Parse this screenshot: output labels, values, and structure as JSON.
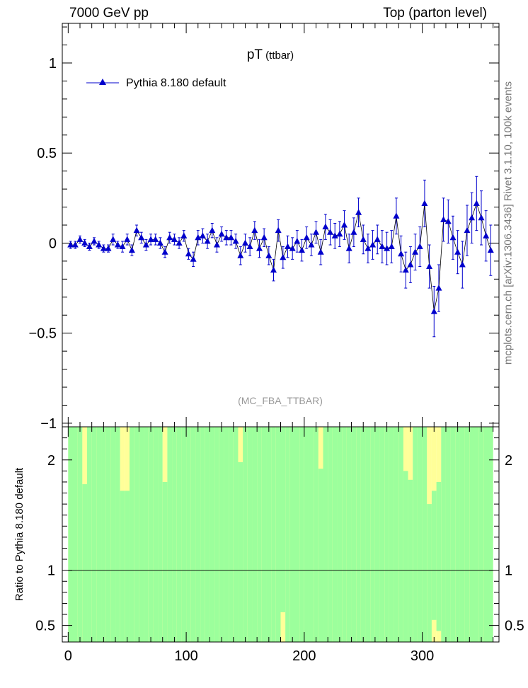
{
  "header": {
    "left": "7000 GeV pp",
    "right": "Top (parton level)",
    "side_note": "mcplots.cern.ch [arXiv:1306.3436]        Rivet 3.1.10,  100k events"
  },
  "chart_data": [
    {
      "type": "line",
      "title": "pT",
      "title_sub": "(ttbar)",
      "watermark": "(MC_FBA_TTBAR)",
      "xlim": [
        -5,
        365
      ],
      "ylim": [
        -1.02,
        1.22
      ],
      "yticks": [
        -1,
        -0.5,
        0,
        0.5,
        1
      ],
      "ytick_labels": [
        "−1",
        "−0.5",
        "0",
        "0.5",
        "1"
      ],
      "legend": {
        "placement": "top-left",
        "entries": [
          "Pythia 8.180 default"
        ]
      },
      "colors": {
        "series": "#0000cc",
        "line": "#000000"
      },
      "series": [
        {
          "name": "Pythia 8.180 default",
          "x": [
            2,
            6,
            10,
            14,
            18,
            22,
            26,
            30,
            34,
            38,
            42,
            46,
            50,
            54,
            58,
            62,
            66,
            70,
            74,
            78,
            82,
            86,
            90,
            94,
            98,
            102,
            106,
            110,
            114,
            118,
            122,
            126,
            130,
            134,
            138,
            142,
            146,
            150,
            154,
            158,
            162,
            166,
            170,
            174,
            178,
            182,
            186,
            190,
            194,
            198,
            202,
            206,
            210,
            214,
            218,
            222,
            226,
            230,
            234,
            238,
            242,
            246,
            250,
            254,
            258,
            262,
            266,
            270,
            274,
            278,
            282,
            286,
            290,
            294,
            298,
            302,
            306,
            310,
            314,
            318,
            322,
            326,
            330,
            334,
            338,
            342,
            346,
            350,
            354,
            358
          ],
          "y": [
            -0.01,
            -0.01,
            0.02,
            0.0,
            -0.02,
            0.01,
            -0.01,
            -0.03,
            -0.03,
            0.02,
            -0.01,
            -0.02,
            0.02,
            -0.04,
            0.07,
            0.03,
            -0.01,
            0.02,
            0.02,
            0.0,
            -0.05,
            0.03,
            0.02,
            0.0,
            0.04,
            -0.06,
            -0.09,
            0.03,
            0.04,
            0.01,
            0.07,
            -0.01,
            0.05,
            0.03,
            0.03,
            0.01,
            -0.07,
            0.0,
            -0.02,
            0.07,
            -0.03,
            0.03,
            -0.07,
            -0.15,
            0.07,
            -0.08,
            -0.02,
            -0.03,
            0.01,
            -0.04,
            0.03,
            -0.01,
            0.06,
            -0.05,
            0.09,
            0.06,
            0.04,
            0.05,
            0.1,
            -0.03,
            0.06,
            0.17,
            0.02,
            -0.03,
            -0.01,
            0.02,
            -0.02,
            -0.03,
            -0.02,
            0.15,
            -0.06,
            -0.15,
            -0.12,
            -0.05,
            -0.02,
            0.22,
            -0.13,
            -0.38,
            -0.25,
            0.13,
            0.12,
            0.03,
            -0.05,
            -0.12,
            0.07,
            0.14,
            0.22,
            0.14,
            0.04,
            -0.04
          ],
          "yerr": [
            0.02,
            0.02,
            0.02,
            0.02,
            0.02,
            0.02,
            0.02,
            0.02,
            0.02,
            0.03,
            0.02,
            0.03,
            0.03,
            0.03,
            0.03,
            0.03,
            0.03,
            0.03,
            0.03,
            0.03,
            0.03,
            0.03,
            0.03,
            0.03,
            0.03,
            0.03,
            0.04,
            0.04,
            0.04,
            0.04,
            0.04,
            0.04,
            0.04,
            0.04,
            0.04,
            0.04,
            0.05,
            0.05,
            0.05,
            0.05,
            0.05,
            0.05,
            0.05,
            0.06,
            0.06,
            0.06,
            0.06,
            0.06,
            0.06,
            0.06,
            0.06,
            0.06,
            0.06,
            0.07,
            0.07,
            0.07,
            0.07,
            0.07,
            0.08,
            0.08,
            0.08,
            0.08,
            0.08,
            0.08,
            0.08,
            0.08,
            0.09,
            0.09,
            0.09,
            0.1,
            0.1,
            0.1,
            0.1,
            0.1,
            0.11,
            0.13,
            0.12,
            0.14,
            0.13,
            0.12,
            0.12,
            0.12,
            0.12,
            0.13,
            0.14,
            0.14,
            0.15,
            0.15,
            0.14,
            0.14
          ]
        }
      ]
    },
    {
      "type": "area",
      "ylabel": "Ratio to Pythia 8.180 default",
      "xlim": [
        -5,
        365
      ],
      "ylim": [
        0.35,
        2.3
      ],
      "xticks": [
        0,
        100,
        200,
        300
      ],
      "xtick_labels": [
        "0",
        "100",
        "200",
        "300"
      ],
      "yticks": [
        0.5,
        1,
        2
      ],
      "ytick_labels": [
        "0.5",
        "1",
        "2"
      ],
      "reference_line": 1,
      "colors": {
        "green": "#9cff9c",
        "yellow": "#ffff99",
        "white": "#ffffff"
      },
      "bands": {
        "x_edges": [
          0,
          4,
          8,
          12,
          16,
          20,
          24,
          28,
          32,
          36,
          40,
          44,
          48,
          52,
          56,
          60,
          64,
          68,
          72,
          76,
          80,
          84,
          88,
          92,
          96,
          100,
          104,
          108,
          112,
          116,
          120,
          124,
          128,
          132,
          136,
          140,
          144,
          148,
          152,
          156,
          160,
          164,
          168,
          172,
          176,
          180,
          184,
          188,
          192,
          196,
          200,
          204,
          208,
          212,
          216,
          220,
          224,
          228,
          232,
          236,
          240,
          244,
          248,
          252,
          256,
          260,
          264,
          268,
          272,
          276,
          280,
          284,
          288,
          292,
          296,
          300,
          304,
          308,
          312,
          316,
          320,
          324,
          328,
          332,
          336,
          340,
          344,
          348,
          352,
          356,
          360
        ],
        "green_top": [
          2.3,
          2.3,
          2.3,
          1.78,
          2.3,
          2.3,
          2.3,
          2.3,
          2.3,
          2.3,
          2.3,
          1.72,
          1.72,
          2.3,
          2.3,
          2.3,
          2.3,
          2.3,
          2.3,
          2.3,
          1.8,
          2.3,
          2.3,
          2.3,
          2.3,
          2.3,
          2.3,
          2.3,
          2.3,
          2.3,
          2.3,
          2.3,
          2.3,
          2.3,
          2.3,
          2.3,
          1.98,
          2.3,
          2.3,
          2.3,
          2.3,
          2.3,
          2.3,
          2.3,
          2.3,
          2.3,
          2.3,
          2.3,
          2.3,
          2.3,
          2.3,
          2.3,
          2.3,
          1.92,
          2.3,
          2.3,
          2.3,
          2.3,
          2.3,
          2.3,
          2.3,
          2.3,
          2.3,
          2.3,
          2.3,
          2.3,
          2.3,
          2.3,
          2.3,
          2.3,
          2.3,
          1.9,
          1.82,
          2.3,
          2.3,
          2.3,
          1.6,
          1.72,
          1.8,
          2.3,
          2.3,
          2.3,
          2.3,
          2.3,
          2.3,
          2.3,
          2.3,
          2.3,
          2.3,
          2.3
        ],
        "yellow_top": [
          2.3,
          2.3,
          2.3,
          2.3,
          2.3,
          2.3,
          2.3,
          2.3,
          2.3,
          2.3,
          2.3,
          2.3,
          2.3,
          2.3,
          2.3,
          2.3,
          2.3,
          2.3,
          2.3,
          2.3,
          2.3,
          2.3,
          2.3,
          2.3,
          2.3,
          2.3,
          2.3,
          2.3,
          2.3,
          2.3,
          2.3,
          2.3,
          2.3,
          2.3,
          2.3,
          2.3,
          2.3,
          2.3,
          2.3,
          2.3,
          2.3,
          2.3,
          2.3,
          2.3,
          2.3,
          2.3,
          2.3,
          2.3,
          2.3,
          2.3,
          2.3,
          2.3,
          2.3,
          2.3,
          2.3,
          2.3,
          2.3,
          2.3,
          2.3,
          2.3,
          2.3,
          2.3,
          2.3,
          2.3,
          2.3,
          2.3,
          2.3,
          2.3,
          2.3,
          2.3,
          2.3,
          2.3,
          2.3,
          2.3,
          2.3,
          2.3,
          2.3,
          2.3,
          2.3,
          2.3,
          2.3,
          2.3,
          2.3,
          2.3,
          2.3,
          2.3,
          2.3,
          2.3,
          2.3,
          2.3
        ],
        "green_bottom": [
          0.35,
          0.35,
          0.35,
          0.35,
          0.35,
          0.35,
          0.35,
          0.35,
          0.35,
          0.35,
          0.35,
          0.35,
          0.35,
          0.35,
          0.35,
          0.35,
          0.35,
          0.35,
          0.35,
          0.35,
          0.35,
          0.35,
          0.35,
          0.35,
          0.35,
          0.35,
          0.35,
          0.35,
          0.35,
          0.35,
          0.35,
          0.35,
          0.35,
          0.35,
          0.35,
          0.35,
          0.35,
          0.35,
          0.35,
          0.35,
          0.35,
          0.35,
          0.35,
          0.35,
          0.35,
          0.62,
          0.35,
          0.35,
          0.35,
          0.35,
          0.35,
          0.35,
          0.35,
          0.35,
          0.35,
          0.35,
          0.35,
          0.35,
          0.35,
          0.35,
          0.35,
          0.35,
          0.35,
          0.35,
          0.35,
          0.35,
          0.35,
          0.35,
          0.35,
          0.35,
          0.35,
          0.35,
          0.35,
          0.35,
          0.35,
          0.35,
          0.35,
          0.55,
          0.45,
          0.35,
          0.35,
          0.35,
          0.35,
          0.35,
          0.35,
          0.35,
          0.35,
          0.35,
          0.35,
          0.35
        ],
        "yellow_bottom": [
          0.35,
          0.35,
          0.35,
          0.35,
          0.35,
          0.35,
          0.35,
          0.35,
          0.35,
          0.35,
          0.35,
          0.35,
          0.35,
          0.35,
          0.35,
          0.35,
          0.35,
          0.35,
          0.35,
          0.35,
          0.35,
          0.35,
          0.35,
          0.35,
          0.35,
          0.35,
          0.35,
          0.35,
          0.35,
          0.35,
          0.35,
          0.35,
          0.35,
          0.35,
          0.35,
          0.35,
          0.35,
          0.35,
          0.35,
          0.35,
          0.35,
          0.35,
          0.35,
          0.35,
          0.35,
          0.35,
          0.35,
          0.35,
          0.35,
          0.35,
          0.35,
          0.35,
          0.35,
          0.35,
          0.35,
          0.35,
          0.35,
          0.35,
          0.35,
          0.35,
          0.35,
          0.35,
          0.35,
          0.35,
          0.35,
          0.35,
          0.35,
          0.35,
          0.35,
          0.35,
          0.35,
          0.35,
          0.35,
          0.35,
          0.35,
          0.35,
          0.35,
          0.35,
          0.35,
          0.35,
          0.35,
          0.35,
          0.35,
          0.35,
          0.35,
          0.35,
          0.35,
          0.35,
          0.35,
          0.35
        ]
      }
    }
  ]
}
